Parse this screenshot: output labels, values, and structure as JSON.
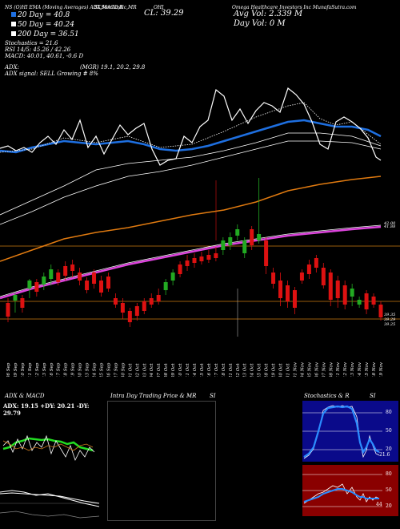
{
  "header": {
    "line1_left": "NS (O)HI   EMA (Moving Averages) ADX,MACD,R",
    "line1_mid": "SI,Stochastic,MR",
    "line1_ticker": "OHI",
    "line1_right": "Omega Healthcare Investors Inc MunafaSutra.com",
    "legend": [
      "20 Day = 40.8",
      "50 Day = 40.24",
      "200 Day = 36.51"
    ],
    "stochastics": "Stochastics = 21.6",
    "rsi": "RSI 14/5: 45.26 / 42.26",
    "macd": "MACD: 40.01, 40.61, -0.6 D",
    "adx": "ADX:",
    "mgr": "(MGR) 19.1, 20.2, 29.8",
    "adx_signal": "ADX signal: SELL Growing # 8%",
    "cl": "CL: 39.29",
    "avg_vol": "Avg Vol: 2.339 M",
    "day_vol": "Day Vol: 0 M"
  },
  "colors": {
    "up": "#22aa22",
    "down": "#dd1111",
    "ema20": "#1e6fe0",
    "ema50": "#e07a10",
    "ema200": "#dd44dd",
    "price_line": "#ffffff",
    "hline": "#cc7a10"
  },
  "chart_data": {
    "type": "candlestick",
    "dates": [
      "06 Sep",
      "09 Sep",
      "10 Sep",
      "11 Sep",
      "12 Sep",
      "13 Sep",
      "16 Sep",
      "17 Sep",
      "18 Sep",
      "19 Sep",
      "20 Sep",
      "23 Sep",
      "24 Sep",
      "25 Sep",
      "26 Sep",
      "27 Sep",
      "30 Sep",
      "01 Oct",
      "02 Oct",
      "03 Oct",
      "04 Oct",
      "07 Oct",
      "08 Oct",
      "09 Oct",
      "10 Oct",
      "11 Oct",
      "14 Oct",
      "15 Oct",
      "16 Oct",
      "17 Oct",
      "18 Oct",
      "21 Oct",
      "22 Oct",
      "23 Oct",
      "24 Oct",
      "25 Oct",
      "28 Oct",
      "29 Oct",
      "30 Oct",
      "31 Oct",
      "01 Nov",
      "04 Nov",
      "05 Nov",
      "06 Nov",
      "07 Nov",
      "08 Nov",
      "11 Nov",
      "12 Nov",
      "13 Nov",
      "14 Nov",
      "15 Nov",
      "18 Nov",
      "19 Nov"
    ],
    "price_labels": [
      "42.00",
      "41.88",
      "39.35",
      "39.29",
      "39.25"
    ]
  },
  "panels": {
    "adx_title": "ADX & MACD",
    "adx_values": "ADX: 19.15 +DY: 20.21 -DY: 29.79",
    "intraday_title": "Intra Day Trading Price & MR",
    "intraday_si": "SI",
    "stoch_title": "Stochastics & R",
    "stoch_si": "SI",
    "stoch_levels": [
      "80",
      "50",
      "20"
    ],
    "stoch_value": "21.6",
    "rsi_levels": [
      "80",
      "50",
      "20"
    ],
    "rsi_value": "44"
  }
}
